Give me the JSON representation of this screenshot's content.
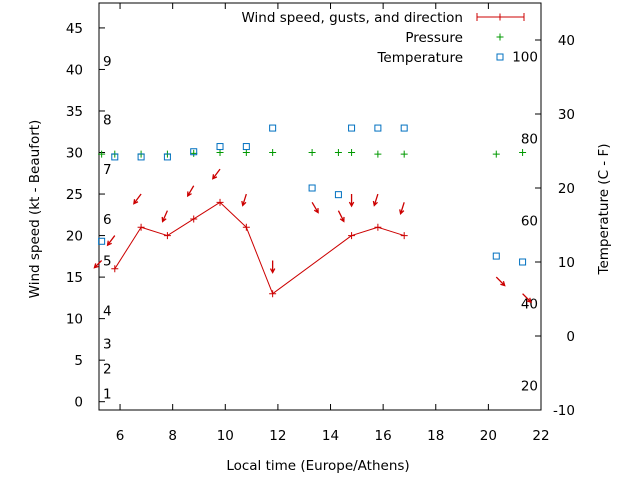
{
  "chart_data": {
    "type": "line",
    "xlabel": "Local time (Europe/Athens)",
    "ylabel": "Wind speed (kt - Beaufort)",
    "y2label": "Temperature (C - F)",
    "xlim": [
      5.2,
      22
    ],
    "ylim": [
      -1,
      48
    ],
    "y2lim": [
      -10,
      45
    ],
    "x_ticks": [
      "6",
      "8",
      "10",
      "12",
      "14",
      "16",
      "18",
      "20",
      "22"
    ],
    "y_ticks": [
      "0",
      "5",
      "10",
      "15",
      "20",
      "25",
      "30",
      "35",
      "40",
      "45"
    ],
    "y2_ticks": [
      "-10",
      "0",
      "10",
      "20",
      "30",
      "40"
    ],
    "beaufort_labels": [
      {
        "text": "1",
        "y": 1
      },
      {
        "text": "2",
        "y": 4
      },
      {
        "text": "3",
        "y": 7
      },
      {
        "text": "4",
        "y": 11
      },
      {
        "text": "5",
        "y": 17
      },
      {
        "text": "6",
        "y": 22
      },
      {
        "text": "7",
        "y": 28
      },
      {
        "text": "8",
        "y": 34
      },
      {
        "text": "9",
        "y": 41
      }
    ],
    "fahrenheit_labels": [
      {
        "text": "20",
        "y2": -6.7
      },
      {
        "text": "40",
        "y2": 4.4
      },
      {
        "text": "60",
        "y2": 15.6
      },
      {
        "text": "80",
        "y2": 26.7
      },
      {
        "text": "100",
        "y2": 37.8
      }
    ],
    "legend": {
      "position": "top-right",
      "entries": [
        {
          "label": "Wind speed, gusts, and direction",
          "marker": "line-plus"
        },
        {
          "label": "Pressure",
          "marker": "plus"
        },
        {
          "label": "Temperature",
          "marker": "square"
        }
      ]
    },
    "series": [
      {
        "name": "Wind speed, gusts, and direction",
        "color": "#cc0000",
        "points": [
          {
            "x": 5.8,
            "y": 16
          },
          {
            "x": 6.8,
            "y": 21
          },
          {
            "x": 7.8,
            "y": 20
          },
          {
            "x": 8.8,
            "y": 22
          },
          {
            "x": 9.8,
            "y": 24
          },
          {
            "x": 10.8,
            "y": 21
          },
          {
            "x": 11.8,
            "y": 13
          },
          {
            "x": 14.8,
            "y": 20
          },
          {
            "x": 15.8,
            "y": 21
          },
          {
            "x": 16.8,
            "y": 20
          }
        ]
      },
      {
        "name": "Pressure",
        "color": "#009900",
        "points": [
          {
            "x": 5.3,
            "y": 29.8
          },
          {
            "x": 5.8,
            "y": 29.8
          },
          {
            "x": 6.8,
            "y": 29.8
          },
          {
            "x": 7.8,
            "y": 29.8
          },
          {
            "x": 8.8,
            "y": 29.9
          },
          {
            "x": 9.8,
            "y": 30
          },
          {
            "x": 10.8,
            "y": 30
          },
          {
            "x": 11.8,
            "y": 30
          },
          {
            "x": 13.3,
            "y": 30
          },
          {
            "x": 14.3,
            "y": 30
          },
          {
            "x": 14.8,
            "y": 30
          },
          {
            "x": 15.8,
            "y": 29.8
          },
          {
            "x": 16.8,
            "y": 29.8
          },
          {
            "x": 20.3,
            "y": 29.8
          },
          {
            "x": 21.3,
            "y": 30
          }
        ]
      },
      {
        "name": "Temperature",
        "color": "#0070c0",
        "axis": "y2",
        "points": [
          {
            "x": 5.3,
            "y2": 12.8
          },
          {
            "x": 5.8,
            "y2": 24.2
          },
          {
            "x": 6.8,
            "y2": 24.2
          },
          {
            "x": 7.8,
            "y2": 24.2
          },
          {
            "x": 8.8,
            "y2": 24.9
          },
          {
            "x": 9.8,
            "y2": 25.6
          },
          {
            "x": 10.8,
            "y2": 25.6
          },
          {
            "x": 11.8,
            "y2": 28.1
          },
          {
            "x": 13.3,
            "y2": 20
          },
          {
            "x": 14.3,
            "y2": 19.1
          },
          {
            "x": 14.8,
            "y2": 28.1
          },
          {
            "x": 15.8,
            "y2": 28.1
          },
          {
            "x": 16.8,
            "y2": 28.1
          },
          {
            "x": 20.3,
            "y2": 10.8
          },
          {
            "x": 21.3,
            "y2": 10
          }
        ]
      }
    ],
    "wind_direction_arrows": [
      {
        "x": 5.3,
        "y": 17,
        "dx": -0.6,
        "dy": 0.6
      },
      {
        "x": 5.8,
        "y": 20,
        "dx": -0.6,
        "dy": 0.8
      },
      {
        "x": 6.8,
        "y": 25,
        "dx": -0.6,
        "dy": 0.8
      },
      {
        "x": 7.8,
        "y": 23,
        "dx": -0.4,
        "dy": 0.9
      },
      {
        "x": 8.8,
        "y": 26,
        "dx": -0.5,
        "dy": 0.85
      },
      {
        "x": 9.8,
        "y": 28,
        "dx": -0.6,
        "dy": 0.8
      },
      {
        "x": 10.8,
        "y": 25,
        "dx": -0.3,
        "dy": 0.95
      },
      {
        "x": 11.8,
        "y": 17,
        "dx": 0,
        "dy": 1
      },
      {
        "x": 13.3,
        "y": 24,
        "dx": 0.5,
        "dy": 0.85
      },
      {
        "x": 14.3,
        "y": 23,
        "dx": 0.45,
        "dy": 0.9
      },
      {
        "x": 14.8,
        "y": 25,
        "dx": 0,
        "dy": 1
      },
      {
        "x": 15.8,
        "y": 25,
        "dx": -0.3,
        "dy": 0.95
      },
      {
        "x": 16.8,
        "y": 24,
        "dx": -0.3,
        "dy": 0.95
      },
      {
        "x": 20.3,
        "y": 15,
        "dx": 0.7,
        "dy": 0.7
      },
      {
        "x": 21.3,
        "y": 13,
        "dx": 0.7,
        "dy": 0.7
      }
    ]
  }
}
